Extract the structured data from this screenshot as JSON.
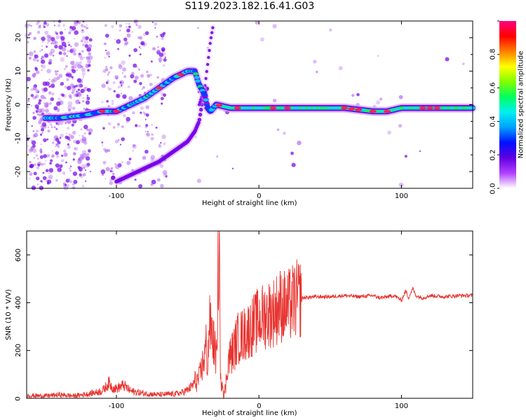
{
  "title": "S119.2023.182.16.41.G03",
  "colors": {
    "snr_line": "#e8332f",
    "axis": "#000000",
    "spectrum_ridge": [
      "#7b00e8",
      "#0040ff",
      "#00d8ff",
      "#00ff60",
      "#ff2050"
    ],
    "scatter": "#b060f0"
  },
  "chart_data": [
    {
      "type": "heatmap",
      "title": "S119.2023.182.16.41.G03",
      "xlabel": "Height of straight line (km)",
      "ylabel": "Frequency (Hz)",
      "xlim": [
        -163,
        150
      ],
      "ylim": [
        -25,
        25
      ],
      "xticks": [
        -100,
        0,
        100
      ],
      "yticks": [
        20,
        10,
        0,
        -10,
        -20
      ],
      "grid": false,
      "colorbar": {
        "label": "Normalized spectral amplitude",
        "range": [
          0,
          1
        ],
        "ticks": [
          "0.0",
          "0.2",
          "0.4",
          "0.6",
          "0.8"
        ],
        "colormap": [
          "#ffffff",
          "#b040ff",
          "#6000e0",
          "#0010ff",
          "#00a0ff",
          "#00f0f0",
          "#00ff60",
          "#80ff00",
          "#ffff00",
          "#ff8000",
          "#ff0000",
          "#ff0080"
        ]
      },
      "ridge": {
        "x": [
          -150,
          -140,
          -130,
          -120,
          -110,
          -100,
          -90,
          -80,
          -70,
          -60,
          -50,
          -45,
          -42,
          -38,
          -36,
          -34,
          -30,
          -20,
          -10,
          0,
          10,
          20,
          40,
          60,
          80,
          90,
          100,
          110,
          120,
          130,
          140,
          150
        ],
        "y": [
          -4,
          -4,
          -3.5,
          -3,
          -2,
          -2,
          0,
          2,
          5,
          8,
          10,
          10,
          6,
          3,
          -1,
          -2,
          0,
          -1,
          -1,
          -1,
          -1,
          -1,
          -1,
          -1,
          -2,
          -2,
          -1,
          -1,
          -1,
          -1,
          -1,
          -1
        ]
      },
      "lower_branch": {
        "x": [
          -100,
          -90,
          -80,
          -70,
          -60,
          -50,
          -45,
          -42,
          -40,
          -38,
          -36
        ],
        "y": [
          -23,
          -21,
          -19,
          -17,
          -14,
          -11,
          -8,
          -5,
          0,
          4,
          5
        ]
      },
      "upper_branch": {
        "x": [
          -42,
          -38,
          -36,
          -34,
          -32
        ],
        "y": [
          0,
          5,
          12,
          19,
          24
        ]
      }
    },
    {
      "type": "line",
      "xlabel": "Height of straight line (km)",
      "ylabel": "SNR (10 * V/V)",
      "xlim": [
        -163,
        150
      ],
      "ylim": [
        0,
        700
      ],
      "xticks": [
        -100,
        0,
        100
      ],
      "yticks": [
        0,
        200,
        400,
        600
      ],
      "grid": false,
      "series": [
        {
          "x": [
            -163,
            -150,
            -140,
            -130,
            -120,
            -110,
            -105,
            -103,
            -100,
            -95,
            -90,
            -80,
            -70,
            -60,
            -55,
            -50,
            -47,
            -45,
            -42,
            -40,
            -38,
            -37,
            -36,
            -35,
            -33,
            -31,
            -29,
            -28,
            -27,
            -26,
            -25,
            -24,
            -23,
            -22,
            -20,
            -18,
            -15,
            -10,
            -5,
            0,
            5,
            10,
            15,
            20,
            25,
            30,
            40,
            50,
            60,
            70,
            80,
            85,
            90,
            95,
            100,
            103,
            105,
            108,
            110,
            115,
            120,
            130,
            140,
            150
          ],
          "y": [
            12,
            10,
            15,
            10,
            18,
            30,
            65,
            45,
            40,
            55,
            30,
            20,
            15,
            18,
            22,
            35,
            50,
            70,
            80,
            130,
            180,
            230,
            120,
            310,
            280,
            200,
            160,
            700,
            60,
            90,
            40,
            20,
            70,
            150,
            180,
            200,
            250,
            270,
            300,
            330,
            350,
            360,
            390,
            380,
            410,
            420,
            425,
            425,
            430,
            425,
            430,
            420,
            425,
            430,
            410,
            450,
            420,
            460,
            430,
            420,
            430,
            425,
            430,
            430
          ]
        }
      ]
    }
  ]
}
